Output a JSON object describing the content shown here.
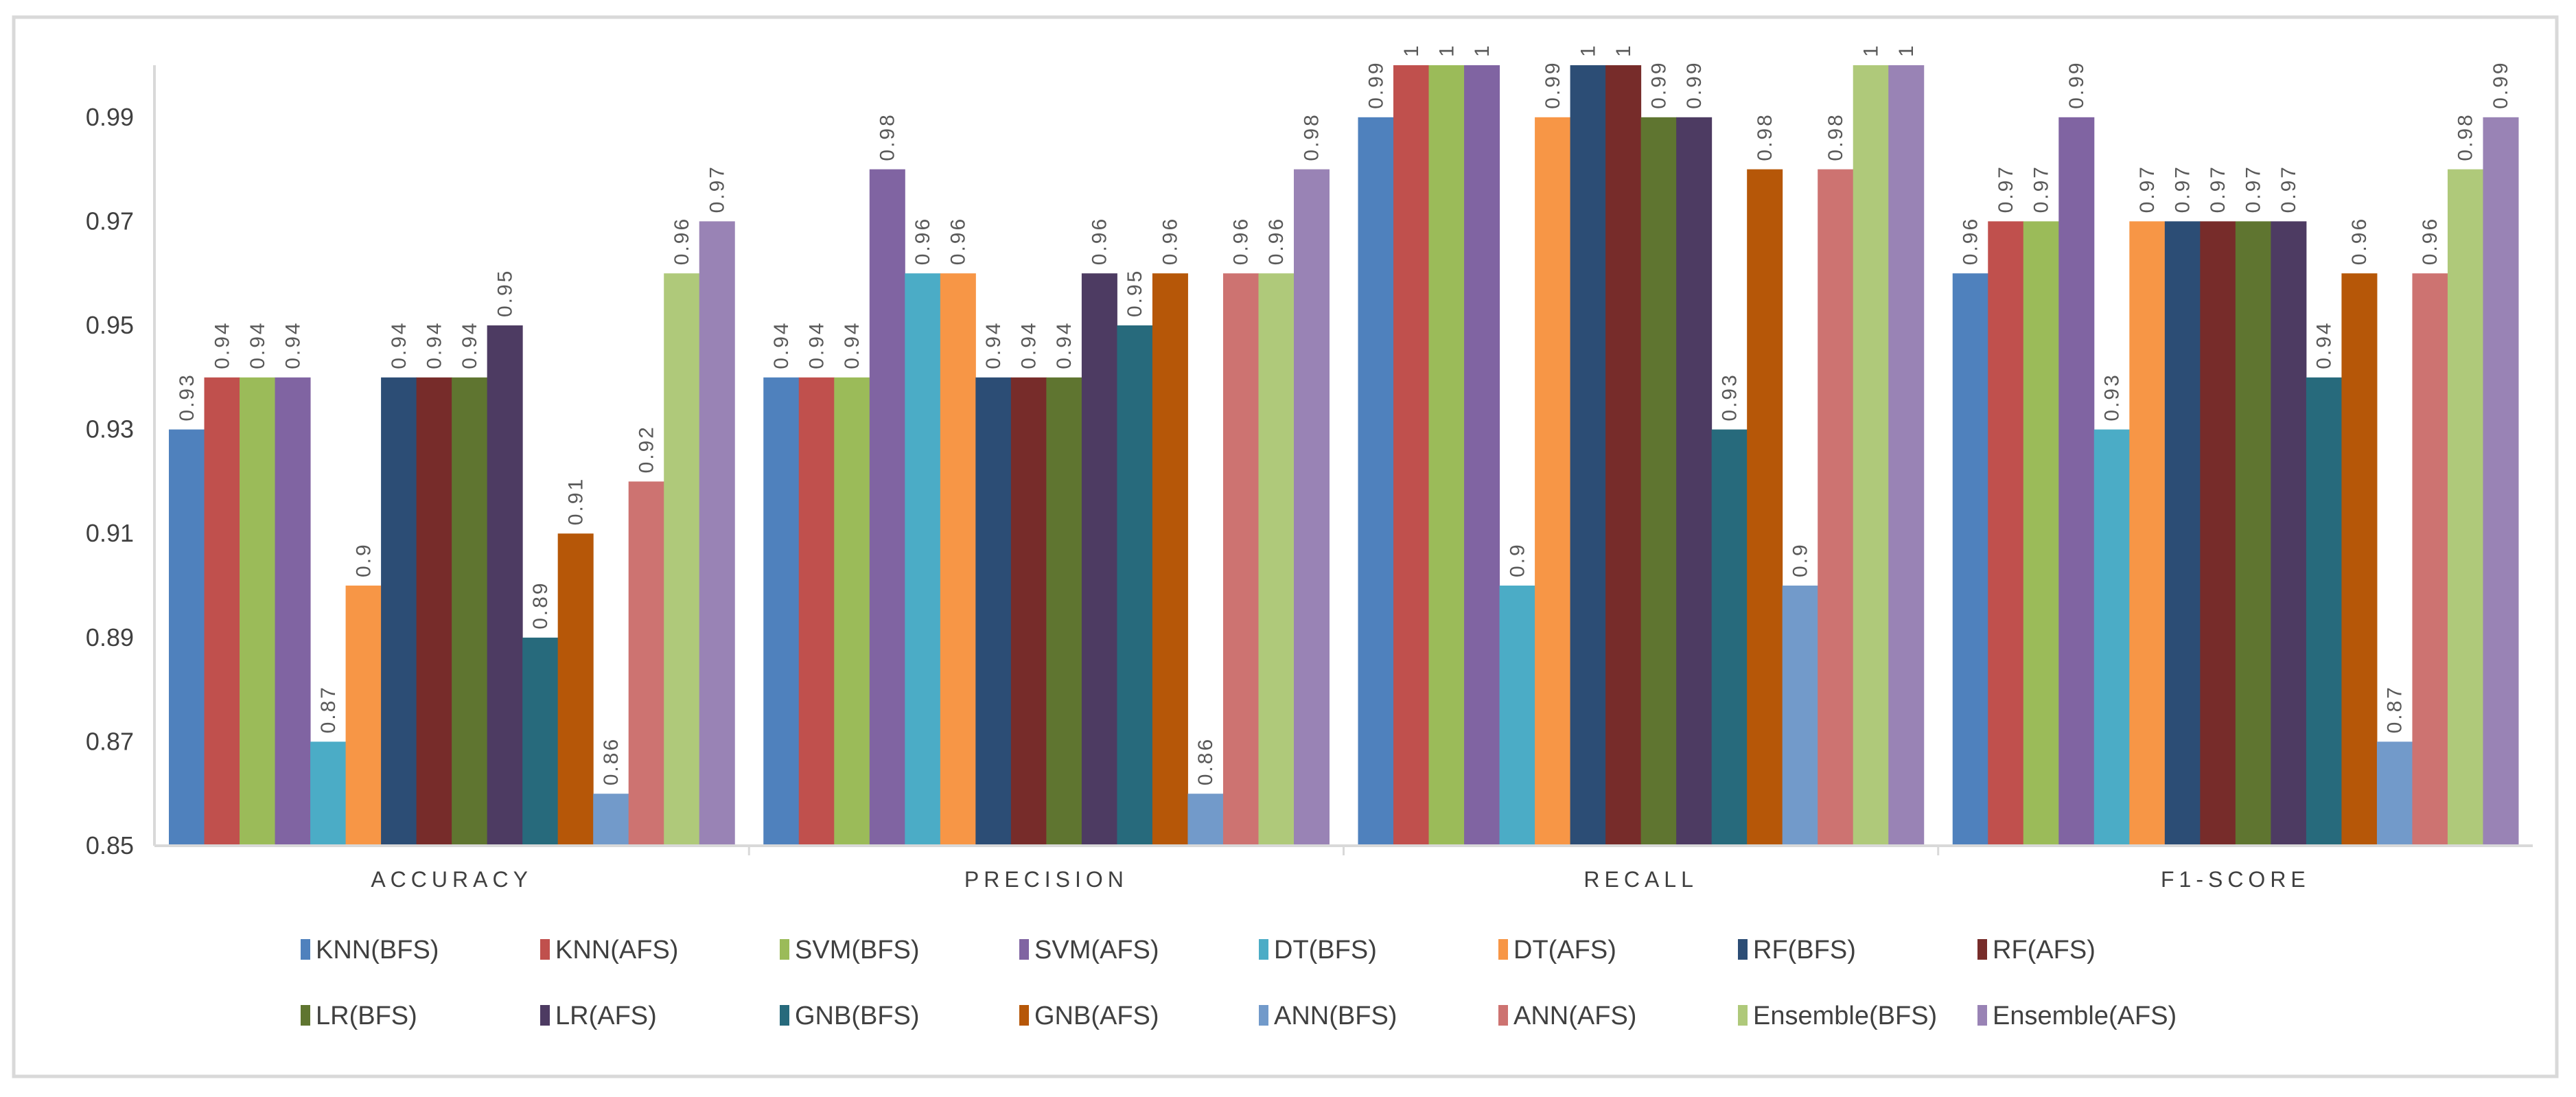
{
  "chart_data": {
    "type": "bar",
    "title": "",
    "xlabel": "",
    "ylabel": "",
    "ylim": [
      0.85,
      1.0
    ],
    "yticks": [
      "0.85",
      "0.87",
      "0.89",
      "0.91",
      "0.93",
      "0.95",
      "0.97",
      "0.99"
    ],
    "grid": false,
    "legend_position": "bottom",
    "categories": [
      "ACCURACY",
      "PRECISION",
      "RECALL",
      "F1-SCORE"
    ],
    "series": [
      {
        "name": "KNN(BFS)",
        "color": "#4F81BD",
        "values": [
          0.93,
          0.94,
          0.99,
          0.96
        ]
      },
      {
        "name": "KNN(AFS)",
        "color": "#C0504D",
        "values": [
          0.94,
          0.94,
          1,
          0.97
        ]
      },
      {
        "name": "SVM(BFS)",
        "color": "#9BBB59",
        "values": [
          0.94,
          0.94,
          1,
          0.97
        ]
      },
      {
        "name": "SVM(AFS)",
        "color": "#8064A2",
        "values": [
          0.94,
          0.98,
          1,
          0.99
        ]
      },
      {
        "name": "DT(BFS)",
        "color": "#4BACC6",
        "values": [
          0.87,
          0.96,
          0.9,
          0.93
        ]
      },
      {
        "name": "DT(AFS)",
        "color": "#F79646",
        "values": [
          0.9,
          0.96,
          0.99,
          0.97
        ]
      },
      {
        "name": "RF(BFS)",
        "color": "#2C4D75",
        "values": [
          0.94,
          0.94,
          1,
          0.97
        ]
      },
      {
        "name": "RF(AFS)",
        "color": "#772C2A",
        "values": [
          0.94,
          0.94,
          1,
          0.97
        ]
      },
      {
        "name": "LR(BFS)",
        "color": "#5F7530",
        "values": [
          0.94,
          0.94,
          0.99,
          0.97
        ]
      },
      {
        "name": "LR(AFS)",
        "color": "#4D3B62",
        "values": [
          0.95,
          0.96,
          0.99,
          0.97
        ]
      },
      {
        "name": "GNB(BFS)",
        "color": "#276A7C",
        "values": [
          0.89,
          0.95,
          0.93,
          0.94
        ]
      },
      {
        "name": "GNB(AFS)",
        "color": "#B65708",
        "values": [
          0.91,
          0.96,
          0.98,
          0.96
        ]
      },
      {
        "name": "ANN(BFS)",
        "color": "#729ACA",
        "values": [
          0.86,
          0.86,
          0.9,
          0.87
        ]
      },
      {
        "name": "ANN(AFS)",
        "color": "#CD7371",
        "values": [
          0.92,
          0.96,
          0.98,
          0.96
        ]
      },
      {
        "name": "Ensemble(BFS)",
        "color": "#AFC97A",
        "values": [
          0.96,
          0.96,
          1,
          0.98
        ]
      },
      {
        "name": "Ensemble(AFS)",
        "color": "#9983B5",
        "values": [
          0.97,
          0.98,
          1,
          0.99
        ]
      }
    ]
  }
}
